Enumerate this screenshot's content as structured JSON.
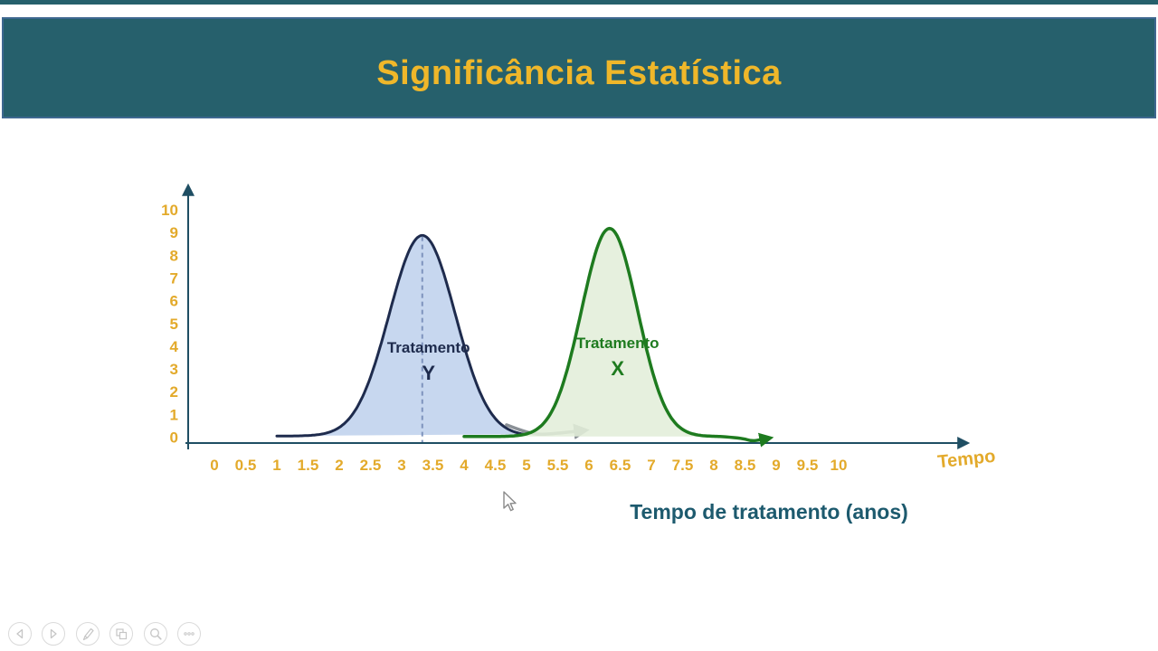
{
  "header": {
    "title": "Significância Estatística"
  },
  "chart_data": {
    "type": "area",
    "title": "Significância Estatística",
    "xlabel": "Tempo de tratamento (anos)",
    "x_axis_arrow_label": "Tempo",
    "x_ticks": [
      "0",
      "0.5",
      "1",
      "1.5",
      "2",
      "2.5",
      "3",
      "3.5",
      "4",
      "4.5",
      "5",
      "5.5",
      "6",
      "6.5",
      "7",
      "7.5",
      "8",
      "8.5",
      "9",
      "9.5",
      "10"
    ],
    "y_ticks": [
      "0",
      "1",
      "2",
      "3",
      "4",
      "5",
      "6",
      "7",
      "8",
      "9",
      "10"
    ],
    "xlim": [
      0,
      10
    ],
    "ylim": [
      0,
      10
    ],
    "grid": false,
    "legend_position": "inside",
    "series": [
      {
        "name": "Tratamento Y",
        "label_line1": "Tratamento",
        "label_line2": "Y",
        "distribution": "normal",
        "mean": 3.33,
        "sigma": 0.53,
        "peak": 8.9,
        "baseline": 0.3,
        "domain": [
          1.0,
          4.95
        ],
        "stroke": "#1E2B4D",
        "fill": "#C7D7EF",
        "fill_opacity": 1,
        "label_color": "#1E2B4D",
        "label_pos": {
          "x": 3.43,
          "y1": 4.1,
          "y2": 3.02
        }
      },
      {
        "name": "Tratamento X",
        "label_line1": "Tratamento",
        "label_line2": "X",
        "distribution": "normal",
        "mean": 6.33,
        "sigma": 0.45,
        "peak": 9.2,
        "baseline": 0.28,
        "domain": [
          4.0,
          8.1
        ],
        "tail_points": [
          [
            8.45,
            0.22
          ],
          [
            8.6,
            0.08
          ],
          [
            8.75,
            0.14
          ],
          [
            8.87,
            0.2
          ]
        ],
        "tail_arrow": true,
        "stroke": "#1E7B1F",
        "fill": "#E3EEDA",
        "fill_opacity": 0.88,
        "label_color": "#1E7B1F",
        "label_pos": {
          "x": 6.46,
          "y1": 4.3,
          "y2": 3.22
        }
      }
    ],
    "annotations": {
      "mean_dashed_line": {
        "x": 3.33,
        "y_from": 0,
        "y_to": 8.85,
        "color": "#7E93BD"
      },
      "overlap_arrow": {
        "points": [
          [
            4.68,
            0.78
          ],
          [
            4.95,
            0.5
          ],
          [
            5.19,
            0.35
          ],
          [
            5.55,
            0.43
          ],
          [
            5.91,
            0.54
          ]
        ],
        "color": "#8A9096"
      }
    }
  },
  "colors": {
    "banner_bg": "#26606C",
    "banner_border": "#3E6890",
    "title_gold": "#EFB72A",
    "tick_gold": "#E3AA2B",
    "axis_teal": "#1F4E63",
    "caption_teal": "#1D5A6E"
  },
  "toolbar": {
    "buttons": [
      {
        "name": "previous-slide",
        "icon": "arrow-left-icon"
      },
      {
        "name": "next-slide",
        "icon": "arrow-right-icon"
      },
      {
        "name": "pen-tools",
        "icon": "pen-icon"
      },
      {
        "name": "see-all-slides",
        "icon": "slides-grid-icon"
      },
      {
        "name": "zoom-slide",
        "icon": "magnifier-icon"
      },
      {
        "name": "more-options",
        "icon": "ellipsis-icon"
      }
    ]
  }
}
